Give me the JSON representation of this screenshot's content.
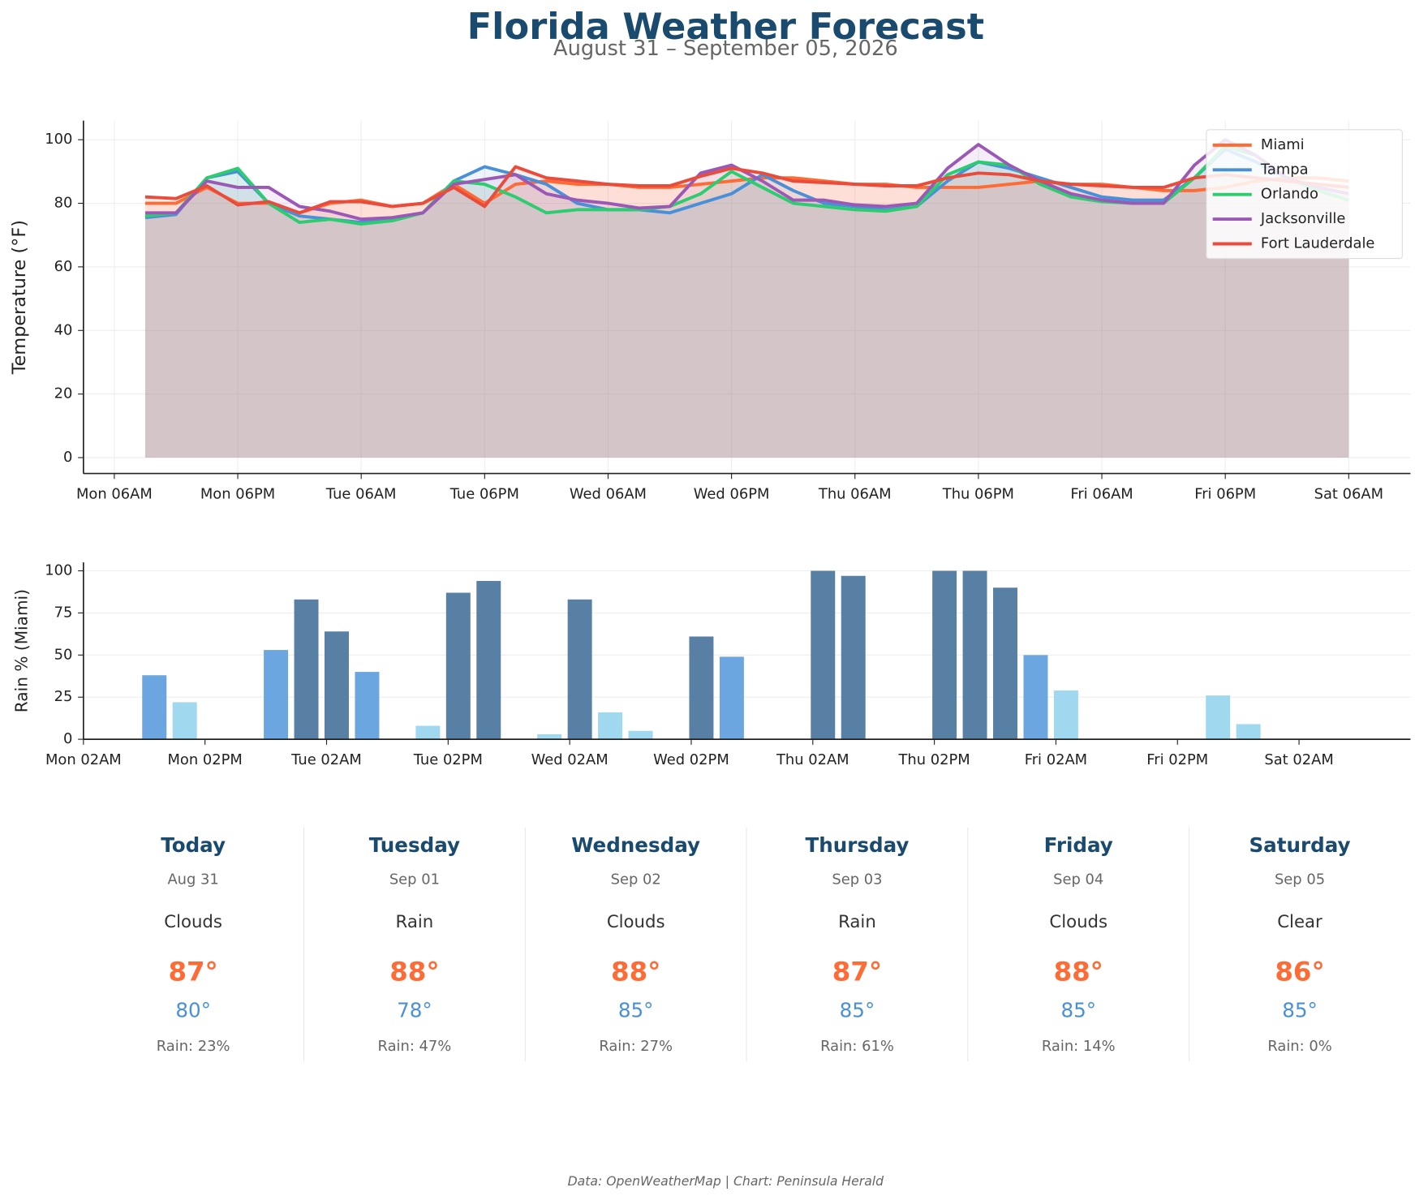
{
  "title": "Florida Weather Forecast",
  "subtitle": "August 31 – September 05, 2026",
  "chart_data": [
    {
      "type": "line",
      "ylabel": "Temperature (°F)",
      "x": [
        "Mon 09AM",
        "Mon 12PM",
        "Mon 03PM",
        "Mon 06PM",
        "Mon 09PM",
        "Tue 12AM",
        "Tue 03AM",
        "Tue 06AM",
        "Tue 09AM",
        "Tue 12PM",
        "Tue 03PM",
        "Tue 06PM",
        "Tue 09PM",
        "Wed 12AM",
        "Wed 03AM",
        "Wed 06AM",
        "Wed 09AM",
        "Wed 12PM",
        "Wed 03PM",
        "Wed 06PM",
        "Wed 09PM",
        "Thu 12AM",
        "Thu 03AM",
        "Thu 06AM",
        "Thu 09AM",
        "Thu 12PM",
        "Thu 03PM",
        "Thu 06PM",
        "Thu 09PM",
        "Fri 12AM",
        "Fri 03AM",
        "Fri 06AM",
        "Fri 09AM",
        "Fri 12PM",
        "Fri 03PM",
        "Fri 06PM",
        "Fri 09PM",
        "Sat 12AM",
        "Sat 03AM",
        "Sat 06AM"
      ],
      "xlim": [
        "Mon 03AM",
        "Sat 12PM"
      ],
      "xticks": [
        "Mon 06AM",
        "Mon 06PM",
        "Tue 06AM",
        "Tue 06PM",
        "Wed 06AM",
        "Wed 06PM",
        "Thu 06AM",
        "Thu 06PM",
        "Fri 06AM",
        "Fri 06PM",
        "Sat 06AM"
      ],
      "ylim": [
        -5,
        106
      ],
      "yticks": [
        0,
        20,
        40,
        60,
        80,
        100
      ],
      "grid": "both",
      "legend": "upper right",
      "series": [
        {
          "name": "Miami",
          "color": "#ff6b35",
          "values": [
            80,
            80,
            85,
            80,
            80,
            77,
            80,
            81,
            79,
            80,
            86,
            80,
            86,
            87,
            86,
            86,
            85,
            85,
            86,
            87,
            88,
            88,
            87,
            86,
            86,
            85,
            85,
            85,
            86,
            87,
            86,
            86,
            85,
            84,
            84,
            85,
            87,
            88,
            88,
            87
          ]
        },
        {
          "name": "Tampa",
          "color": "#4a90d9",
          "values": [
            75.5,
            76.5,
            88,
            90,
            80,
            76,
            75,
            74,
            75,
            77,
            87,
            91.5,
            89,
            86,
            80,
            78,
            78,
            77,
            80,
            83,
            89,
            84,
            80,
            79,
            78,
            79,
            87,
            93,
            91,
            88,
            85,
            82,
            81,
            81,
            88,
            97,
            93,
            88,
            85,
            83
          ]
        },
        {
          "name": "Orlando",
          "color": "#2ecc71",
          "values": [
            76,
            77,
            88,
            91,
            80,
            74,
            75,
            73.5,
            74.5,
            77,
            87,
            86,
            82,
            77,
            78,
            78,
            78,
            79,
            83,
            90,
            85,
            80,
            79,
            78,
            77.5,
            79,
            89,
            93,
            92,
            86,
            82,
            80.5,
            80,
            80,
            88,
            98,
            95,
            88,
            84,
            81
          ]
        },
        {
          "name": "Jacksonville",
          "color": "#9b59b6",
          "values": [
            77,
            77,
            87,
            85,
            85,
            79,
            77.5,
            75,
            75.5,
            77,
            86,
            87.5,
            89,
            83,
            81,
            80,
            78.5,
            79,
            89.5,
            92,
            87,
            81,
            81,
            79.5,
            79,
            80,
            91,
            98.5,
            92,
            87,
            83,
            81,
            80,
            80,
            92,
            100,
            95,
            88,
            85,
            83
          ]
        },
        {
          "name": "Fort Lauderdale",
          "color": "#e74c3c",
          "values": [
            82,
            81.5,
            85.5,
            79.5,
            80.5,
            77,
            80.5,
            80.5,
            79,
            80,
            85,
            79,
            91.5,
            88,
            87,
            86,
            85.5,
            85.5,
            88.5,
            91,
            89.5,
            87,
            86.5,
            86,
            85.5,
            85.5,
            88,
            89.5,
            89,
            87,
            86,
            85.5,
            85,
            85,
            88,
            89,
            88,
            87,
            86,
            85
          ]
        }
      ]
    },
    {
      "type": "bar",
      "ylabel": "Rain % (Miami)",
      "x": [
        "Mon 09AM",
        "Mon 12PM",
        "Mon 03PM",
        "Mon 06PM",
        "Mon 09PM",
        "Tue 12AM",
        "Tue 03AM",
        "Tue 06AM",
        "Tue 09AM",
        "Tue 12PM",
        "Tue 03PM",
        "Tue 06PM",
        "Tue 09PM",
        "Wed 12AM",
        "Wed 03AM",
        "Wed 06AM",
        "Wed 09AM",
        "Wed 12PM",
        "Wed 03PM",
        "Wed 06PM",
        "Wed 09PM",
        "Thu 12AM",
        "Thu 03AM",
        "Thu 06AM",
        "Thu 09AM",
        "Thu 12PM",
        "Thu 03PM",
        "Thu 06PM",
        "Thu 09PM",
        "Fri 12AM",
        "Fri 03AM",
        "Fri 06AM",
        "Fri 09AM",
        "Fri 12PM",
        "Fri 03PM",
        "Fri 06PM",
        "Fri 09PM",
        "Sat 12AM",
        "Sat 03AM",
        "Sat 06AM"
      ],
      "values": [
        38,
        22,
        0,
        0,
        53,
        83,
        64,
        40,
        0,
        8,
        87,
        94,
        0,
        3,
        83,
        16,
        5,
        0,
        61,
        49,
        0,
        0,
        100,
        97,
        0,
        0,
        100,
        100,
        90,
        50,
        29,
        0,
        0,
        0,
        0,
        26,
        9,
        0,
        0,
        0
      ],
      "colors": [
        "#6ca6e0",
        "#a0d8ef",
        "#a0d8ef",
        "#a0d8ef",
        "#6ca6e0",
        "#5880a4",
        "#5880a4",
        "#6ca6e0",
        "#a0d8ef",
        "#a0d8ef",
        "#5880a4",
        "#5880a4",
        "#a0d8ef",
        "#a0d8ef",
        "#5880a4",
        "#a0d8ef",
        "#a0d8ef",
        "#a0d8ef",
        "#5880a4",
        "#6ca6e0",
        "#a0d8ef",
        "#a0d8ef",
        "#5880a4",
        "#5880a4",
        "#a0d8ef",
        "#a0d8ef",
        "#5880a4",
        "#5880a4",
        "#5880a4",
        "#6ca6e0",
        "#a0d8ef",
        "#a0d8ef",
        "#a0d8ef",
        "#a0d8ef",
        "#a0d8ef",
        "#a0d8ef",
        "#a0d8ef",
        "#a0d8ef",
        "#a0d8ef",
        "#a0d8ef"
      ],
      "xlim": [
        "Mon 02AM",
        "Sat 01PM"
      ],
      "xticks": [
        "Mon 02AM",
        "Mon 02PM",
        "Tue 02AM",
        "Tue 02PM",
        "Wed 02AM",
        "Wed 02PM",
        "Thu 02AM",
        "Thu 02PM",
        "Fri 02AM",
        "Fri 02PM",
        "Sat 02AM"
      ],
      "ylim": [
        0,
        105
      ],
      "yticks": [
        0,
        25,
        50,
        75,
        100
      ],
      "grid": "y"
    }
  ],
  "forecast": [
    {
      "day": "Today",
      "date": "Aug 31",
      "condition": "Clouds",
      "high": "87°",
      "low": "80°",
      "rain": "Rain: 23%"
    },
    {
      "day": "Tuesday",
      "date": "Sep 01",
      "condition": "Rain",
      "high": "88°",
      "low": "78°",
      "rain": "Rain: 47%"
    },
    {
      "day": "Wednesday",
      "date": "Sep 02",
      "condition": "Clouds",
      "high": "88°",
      "low": "85°",
      "rain": "Rain: 27%"
    },
    {
      "day": "Thursday",
      "date": "Sep 03",
      "condition": "Rain",
      "high": "87°",
      "low": "85°",
      "rain": "Rain: 61%"
    },
    {
      "day": "Friday",
      "date": "Sep 04",
      "condition": "Clouds",
      "high": "88°",
      "low": "85°",
      "rain": "Rain: 14%"
    },
    {
      "day": "Saturday",
      "date": "Sep 05",
      "condition": "Clear",
      "high": "86°",
      "low": "85°",
      "rain": "Rain: 0%"
    }
  ],
  "footer": "Data: OpenWeatherMap | Chart: Peninsula Herald"
}
